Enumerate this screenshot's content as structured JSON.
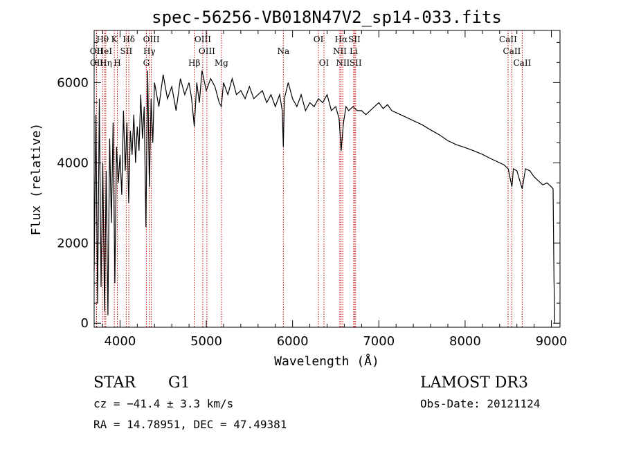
{
  "chart_data": {
    "type": "line",
    "title": "spec-56256-VB018N47V2_sp14-033.fits",
    "xlabel": "Wavelength (Å)",
    "ylabel": "Flux (relative)",
    "xlim": [
      3700,
      9100
    ],
    "ylim": [
      -100,
      7300
    ],
    "xticks": [
      4000,
      5000,
      6000,
      7000,
      8000,
      9000
    ],
    "yticks": [
      0,
      2000,
      4000,
      6000
    ],
    "series": [
      {
        "name": "spectrum",
        "x": [
          3700,
          3720,
          3740,
          3760,
          3780,
          3800,
          3820,
          3840,
          3860,
          3880,
          3900,
          3920,
          3940,
          3960,
          3980,
          4000,
          4020,
          4040,
          4060,
          4080,
          4100,
          4120,
          4140,
          4160,
          4180,
          4200,
          4220,
          4240,
          4260,
          4280,
          4300,
          4320,
          4340,
          4360,
          4380,
          4400,
          4450,
          4500,
          4550,
          4600,
          4650,
          4700,
          4750,
          4800,
          4830,
          4861,
          4890,
          4920,
          4950,
          5000,
          5050,
          5100,
          5150,
          5175,
          5200,
          5250,
          5300,
          5350,
          5400,
          5450,
          5500,
          5550,
          5600,
          5650,
          5700,
          5750,
          5800,
          5850,
          5880,
          5893,
          5905,
          5950,
          6000,
          6050,
          6100,
          6150,
          6200,
          6250,
          6300,
          6350,
          6400,
          6450,
          6500,
          6540,
          6563,
          6590,
          6620,
          6650,
          6700,
          6750,
          6800,
          6850,
          6900,
          6950,
          7000,
          7050,
          7100,
          7150,
          7200,
          7300,
          7400,
          7500,
          7600,
          7700,
          7800,
          7900,
          8000,
          8100,
          8200,
          8300,
          8400,
          8450,
          8500,
          8542,
          8560,
          8600,
          8662,
          8700,
          8750,
          8800,
          8850,
          8900,
          8950,
          9000,
          9020,
          9030,
          9040
        ],
        "values": [
          1300,
          5200,
          500,
          5600,
          900,
          4000,
          300,
          3800,
          200,
          4600,
          2500,
          5000,
          1000,
          4400,
          3500,
          4200,
          3200,
          5300,
          3800,
          5000,
          3000,
          4800,
          4200,
          5200,
          4000,
          4900,
          4300,
          5700,
          4600,
          5400,
          2400,
          6300,
          3400,
          5600,
          4500,
          6000,
          5400,
          6200,
          5600,
          5900,
          5300,
          6100,
          5700,
          6000,
          5600,
          4900,
          6000,
          5500,
          6300,
          5800,
          6100,
          5900,
          5500,
          5400,
          6000,
          5700,
          6100,
          5700,
          5800,
          5600,
          5900,
          5600,
          5700,
          5800,
          5500,
          5700,
          5400,
          5700,
          5300,
          4400,
          5600,
          6000,
          5600,
          5400,
          5700,
          5300,
          5500,
          5400,
          5600,
          5500,
          5700,
          5300,
          5400,
          5100,
          4300,
          5000,
          5400,
          5300,
          5400,
          5300,
          5300,
          5200,
          5300,
          5400,
          5500,
          5350,
          5450,
          5300,
          5250,
          5150,
          5050,
          4950,
          4820,
          4700,
          4550,
          4450,
          4380,
          4300,
          4210,
          4100,
          4000,
          3950,
          3850,
          3400,
          3850,
          3800,
          3350,
          3850,
          3800,
          3650,
          3550,
          3450,
          3500,
          3400,
          3350,
          1100,
          0
        ]
      }
    ],
    "lines": [
      {
        "label": "Hθ",
        "x": 3798,
        "row": 1
      },
      {
        "label": "OII",
        "x": 3727,
        "row": 2
      },
      {
        "label": "OII",
        "x": 3729,
        "row": 3
      },
      {
        "label": "HeI",
        "x": 3820,
        "row": 2
      },
      {
        "label": "Hη",
        "x": 3835,
        "row": 3
      },
      {
        "label": "K",
        "x": 3934,
        "row": 1
      },
      {
        "label": "H",
        "x": 3969,
        "row": 3
      },
      {
        "label": "SII",
        "x": 4072,
        "row": 2
      },
      {
        "label": "Hδ",
        "x": 4102,
        "row": 1
      },
      {
        "label": "OIII",
        "x": 4363,
        "row": 1
      },
      {
        "label": "Hγ",
        "x": 4340,
        "row": 2
      },
      {
        "label": "G",
        "x": 4305,
        "row": 3
      },
      {
        "label": "Hβ",
        "x": 4861,
        "row": 3
      },
      {
        "label": "OIII",
        "x": 4959,
        "row": 1
      },
      {
        "label": "OIII",
        "x": 5007,
        "row": 2
      },
      {
        "label": "Mg",
        "x": 5175,
        "row": 3
      },
      {
        "label": "Na",
        "x": 5893,
        "row": 2
      },
      {
        "label": "OI",
        "x": 6300,
        "row": 1
      },
      {
        "label": "OI",
        "x": 6364,
        "row": 3
      },
      {
        "label": "Hα",
        "x": 6563,
        "row": 1
      },
      {
        "label": "NII",
        "x": 6548,
        "row": 2
      },
      {
        "label": "NII",
        "x": 6583,
        "row": 3
      },
      {
        "label": "SII",
        "x": 6717,
        "row": 1
      },
      {
        "label": "Li",
        "x": 6708,
        "row": 2
      },
      {
        "label": "SII",
        "x": 6731,
        "row": 3
      },
      {
        "label": "CaII",
        "x": 8498,
        "row": 1
      },
      {
        "label": "CaII",
        "x": 8542,
        "row": 2
      },
      {
        "label": "CaII",
        "x": 8662,
        "row": 3
      }
    ],
    "line_color": "#cc0000",
    "grid": false
  },
  "info": {
    "object_class": "STAR",
    "subclass": "G1",
    "survey": "LAMOST DR3",
    "redshift": "cz = −41.4 ± 3.3 km/s",
    "obs_date": "Obs-Date: 20121124",
    "coordinates": "RA =  14.78951, DEC =  47.49381"
  }
}
